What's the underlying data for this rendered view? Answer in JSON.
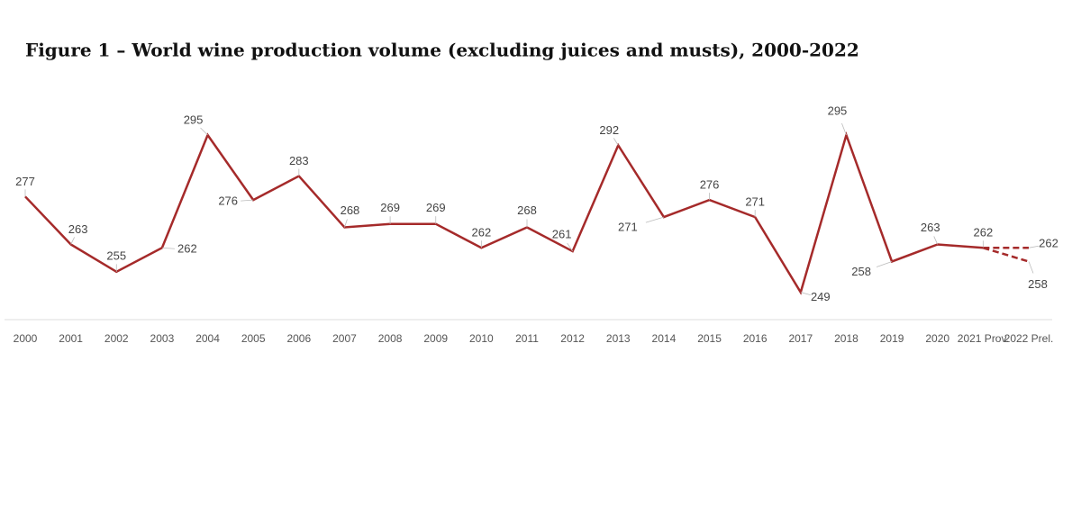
{
  "chart_data": {
    "type": "line",
    "title": "Figure 1 – World wine production volume (excluding juices and musts), 2000-2022",
    "categories": [
      "2000",
      "2001",
      "2002",
      "2003",
      "2004",
      "2005",
      "2006",
      "2007",
      "2008",
      "2009",
      "2010",
      "2011",
      "2012",
      "2013",
      "2014",
      "2015",
      "2016",
      "2017",
      "2018",
      "2019",
      "2020",
      "2021 Prov.",
      "2022 Prel."
    ],
    "series": [
      {
        "color": "#a52a2a",
        "dashed": false,
        "values": [
          277,
          263,
          255,
          262,
          295,
          276,
          283,
          268,
          269,
          269,
          262,
          268,
          261,
          292,
          271,
          276,
          271,
          249,
          295,
          258,
          263,
          262,
          null
        ]
      },
      {
        "color": "#a52a2a",
        "dashed": true,
        "values": [
          null,
          null,
          null,
          null,
          null,
          null,
          null,
          null,
          null,
          null,
          null,
          null,
          null,
          null,
          null,
          null,
          null,
          null,
          null,
          null,
          null,
          262,
          262
        ]
      },
      {
        "color": "#a52a2a",
        "dashed": true,
        "values": [
          null,
          null,
          null,
          null,
          null,
          null,
          null,
          null,
          null,
          null,
          null,
          null,
          null,
          null,
          null,
          null,
          null,
          null,
          null,
          null,
          null,
          262,
          258
        ]
      }
    ],
    "ylim": [
      241,
      300
    ]
  }
}
